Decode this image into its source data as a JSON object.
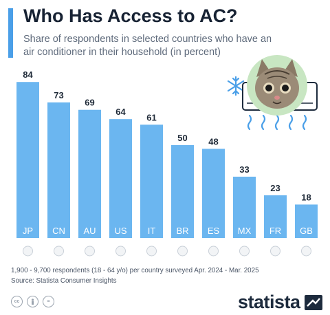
{
  "header": {
    "title": "Who Has Access to AC?",
    "subtitle": "Share of respondents in selected countries who have an air conditioner in their household (in percent)"
  },
  "chart_data": {
    "type": "bar",
    "categories": [
      "JP",
      "CN",
      "AU",
      "US",
      "IT",
      "BR",
      "ES",
      "MX",
      "FR",
      "GB"
    ],
    "values": [
      84,
      73,
      69,
      64,
      61,
      50,
      48,
      33,
      23,
      18
    ],
    "ylim": [
      0,
      100
    ],
    "grid": false,
    "bar_color": "#6bb6f0",
    "label_color": "#1f2a38"
  },
  "footer": {
    "note": "1,900 - 9,700 respondents (18 - 64 y/o) per country surveyed Apr. 2024 - Mar. 2025",
    "source": "Source: Statista Consumer Insights",
    "logo": "statista"
  },
  "colors": {
    "accent": "#4a9fe8",
    "title": "#172233",
    "subtitle": "#5e6a7b"
  },
  "icons": [
    "cat-portrait-icon",
    "snowflake-icon",
    "air-conditioner-icon",
    "cold-air-icon",
    "cc-icon",
    "person-icon",
    "equal-icon",
    "statista-logo-icon"
  ]
}
